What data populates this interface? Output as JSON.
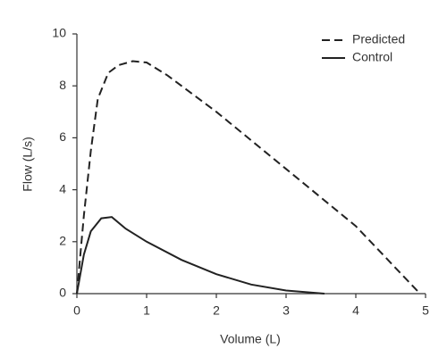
{
  "chart_data": {
    "type": "line",
    "x_label": "Volume (L)",
    "y_label": "Flow (L/s)",
    "xlim": [
      0,
      5
    ],
    "xticks": [
      0,
      1,
      2,
      3,
      4,
      5
    ],
    "ylim": [
      0,
      10
    ],
    "yticks": [
      0,
      2,
      4,
      6,
      8,
      10
    ],
    "grid": false,
    "legend": "upper right",
    "series": [
      {
        "name": "Predicted",
        "color": "#222222",
        "dash": true,
        "x": [
          0,
          0.1,
          0.2,
          0.3,
          0.45,
          0.6,
          0.8,
          1.0,
          1.3,
          2.0,
          3.0,
          4.0,
          4.92
        ],
        "values": [
          0,
          3,
          5.5,
          7.5,
          8.5,
          8.8,
          8.95,
          8.9,
          8.4,
          7.0,
          4.8,
          2.6,
          0
        ]
      },
      {
        "name": "Control",
        "color": "#222222",
        "dash": false,
        "x": [
          0,
          0.1,
          0.2,
          0.35,
          0.5,
          0.7,
          1.0,
          1.5,
          2.0,
          2.5,
          3.0,
          3.55
        ],
        "values": [
          0,
          1.5,
          2.4,
          2.9,
          2.95,
          2.5,
          2.0,
          1.3,
          0.75,
          0.35,
          0.12,
          0
        ]
      }
    ]
  }
}
